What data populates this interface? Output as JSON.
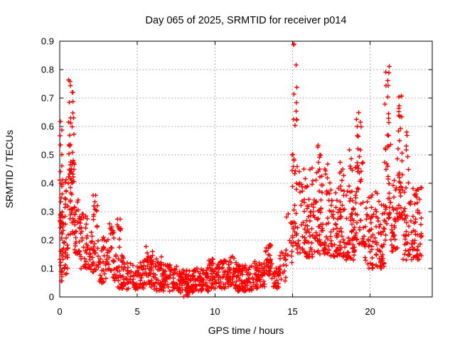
{
  "chart_data": {
    "type": "scatter",
    "title": "Day 065 of 2025, SRMTID for receiver p014",
    "xlabel": "GPS time / hours",
    "ylabel": "SRMTID / TECUs",
    "xlim": [
      0,
      24
    ],
    "ylim": [
      0,
      0.9
    ],
    "xticks": {
      "values": [
        0,
        5,
        10,
        15,
        20
      ],
      "labels": [
        "0",
        "5",
        "10",
        "15",
        "20"
      ]
    },
    "yticks": {
      "values": [
        0,
        0.1,
        0.2,
        0.3,
        0.4,
        0.5,
        0.6,
        0.7,
        0.8,
        0.9
      ],
      "labels": [
        "0",
        "0.1",
        "0.2",
        "0.3",
        "0.4",
        "0.5",
        "0.6",
        "0.7",
        "0.8",
        "0.9"
      ]
    },
    "grid": true,
    "legend": "none",
    "marker": "plus",
    "colors": {
      "marker": "#ff0000",
      "grid": "#9a9a9a",
      "axis": "#000000",
      "text": "#000000",
      "background": "#ffffff"
    },
    "seed": 65,
    "cluster_format": [
      "x_start_hours",
      "x_end_hours",
      "y_min_tecu",
      "y_max_tecu",
      "num_points",
      "low_bias_exponent"
    ],
    "point_clusters": [
      [
        0.0,
        0.25,
        0.055,
        0.3,
        30,
        1.2
      ],
      [
        0.0,
        0.2,
        0.3,
        0.63,
        15,
        1.0
      ],
      [
        0.02,
        0.1,
        0.255,
        0.285,
        5,
        1.0
      ],
      [
        0.25,
        0.55,
        0.08,
        0.33,
        26,
        1.3
      ],
      [
        0.3,
        0.52,
        0.33,
        0.46,
        6,
        1.0
      ],
      [
        0.55,
        0.95,
        0.4,
        0.78,
        44,
        1.5
      ],
      [
        0.58,
        0.95,
        0.22,
        0.4,
        20,
        1.0
      ],
      [
        0.95,
        1.35,
        0.15,
        0.36,
        34,
        1.4
      ],
      [
        1.35,
        1.95,
        0.1,
        0.31,
        40,
        1.6
      ],
      [
        1.95,
        2.45,
        0.08,
        0.23,
        26,
        1.3
      ],
      [
        2.15,
        2.45,
        0.23,
        0.375,
        13,
        1.0
      ],
      [
        2.45,
        3.1,
        0.05,
        0.21,
        40,
        1.5
      ],
      [
        3.1,
        3.5,
        0.07,
        0.27,
        24,
        1.2
      ],
      [
        3.5,
        4.1,
        0.03,
        0.15,
        36,
        1.3
      ],
      [
        3.7,
        3.95,
        0.15,
        0.3,
        10,
        1.0
      ],
      [
        4.1,
        5.2,
        0.025,
        0.12,
        62,
        1.4
      ],
      [
        5.2,
        6.1,
        0.03,
        0.135,
        55,
        1.4
      ],
      [
        5.5,
        6.0,
        0.13,
        0.19,
        8,
        1.0
      ],
      [
        6.1,
        7.6,
        0.02,
        0.115,
        92,
        1.4
      ],
      [
        6.2,
        6.55,
        0.11,
        0.165,
        7,
        1.0
      ],
      [
        7.6,
        8.6,
        0.015,
        0.095,
        72,
        1.3
      ],
      [
        7.95,
        8.3,
        0.0,
        0.012,
        4,
        1.0
      ],
      [
        8.6,
        9.6,
        0.02,
        0.105,
        70,
        1.3
      ],
      [
        9.6,
        10.45,
        0.03,
        0.135,
        60,
        1.4
      ],
      [
        10.45,
        11.45,
        0.03,
        0.145,
        66,
        1.5
      ],
      [
        11.45,
        12.45,
        0.02,
        0.115,
        70,
        1.4
      ],
      [
        12.45,
        13.2,
        0.03,
        0.125,
        55,
        1.3
      ],
      [
        13.2,
        13.7,
        0.06,
        0.185,
        36,
        1.3
      ],
      [
        13.7,
        14.15,
        0.03,
        0.105,
        30,
        1.2
      ],
      [
        14.15,
        14.7,
        0.05,
        0.165,
        20,
        1.2
      ],
      [
        14.55,
        14.98,
        0.1,
        0.3,
        10,
        1.2
      ],
      [
        14.98,
        15.3,
        0.18,
        0.52,
        30,
        1.2
      ],
      [
        15.05,
        15.28,
        0.6,
        0.89,
        11,
        1.0
      ],
      [
        15.3,
        16.3,
        0.14,
        0.46,
        78,
        1.5
      ],
      [
        16.3,
        17.3,
        0.15,
        0.475,
        78,
        1.5
      ],
      [
        16.55,
        16.85,
        0.475,
        0.535,
        5,
        1.0
      ],
      [
        17.3,
        18.4,
        0.14,
        0.41,
        82,
        1.5
      ],
      [
        18.0,
        18.3,
        0.41,
        0.475,
        6,
        1.0
      ],
      [
        18.4,
        19.05,
        0.13,
        0.385,
        58,
        1.5
      ],
      [
        18.6,
        18.85,
        0.385,
        0.52,
        6,
        1.0
      ],
      [
        19.05,
        19.6,
        0.18,
        0.5,
        40,
        1.4
      ],
      [
        19.1,
        19.5,
        0.5,
        0.65,
        9,
        1.0
      ],
      [
        19.6,
        20.9,
        0.1,
        0.385,
        95,
        1.5
      ],
      [
        20.9,
        21.35,
        0.2,
        0.56,
        36,
        1.3
      ],
      [
        20.95,
        21.25,
        0.56,
        0.82,
        13,
        1.0
      ],
      [
        21.35,
        21.75,
        0.15,
        0.41,
        30,
        1.4
      ],
      [
        21.75,
        22.1,
        0.25,
        0.63,
        32,
        1.2
      ],
      [
        21.8,
        22.05,
        0.63,
        0.71,
        9,
        1.0
      ],
      [
        22.1,
        23.35,
        0.13,
        0.385,
        88,
        1.4
      ],
      [
        22.25,
        22.5,
        0.4,
        0.585,
        7,
        1.0
      ]
    ]
  }
}
